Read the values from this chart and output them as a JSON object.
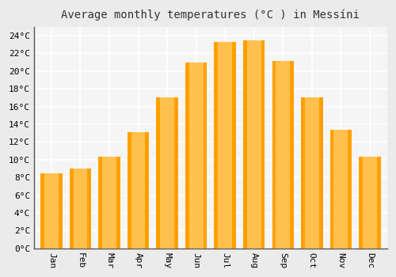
{
  "title": "Average monthly temperatures (°C ) in Messíni",
  "months": [
    "Jan",
    "Feb",
    "Mar",
    "Apr",
    "May",
    "Jun",
    "Jul",
    "Aug",
    "Sep",
    "Oct",
    "Nov",
    "Dec"
  ],
  "values": [
    8.5,
    9.0,
    10.3,
    13.1,
    17.0,
    21.0,
    23.3,
    23.5,
    21.1,
    17.0,
    13.4,
    10.3
  ],
  "bar_color_center": "#FFC04D",
  "bar_color_edge": "#FFA000",
  "ylim": [
    0,
    25
  ],
  "yticks": [
    0,
    2,
    4,
    6,
    8,
    10,
    12,
    14,
    16,
    18,
    20,
    22,
    24
  ],
  "background_color": "#ebebeb",
  "plot_bg_color": "#f5f5f5",
  "grid_color": "#ffffff",
  "spine_color": "#555555",
  "title_fontsize": 10,
  "tick_fontsize": 8,
  "xlabel_rotation": 270,
  "bar_width": 0.75
}
